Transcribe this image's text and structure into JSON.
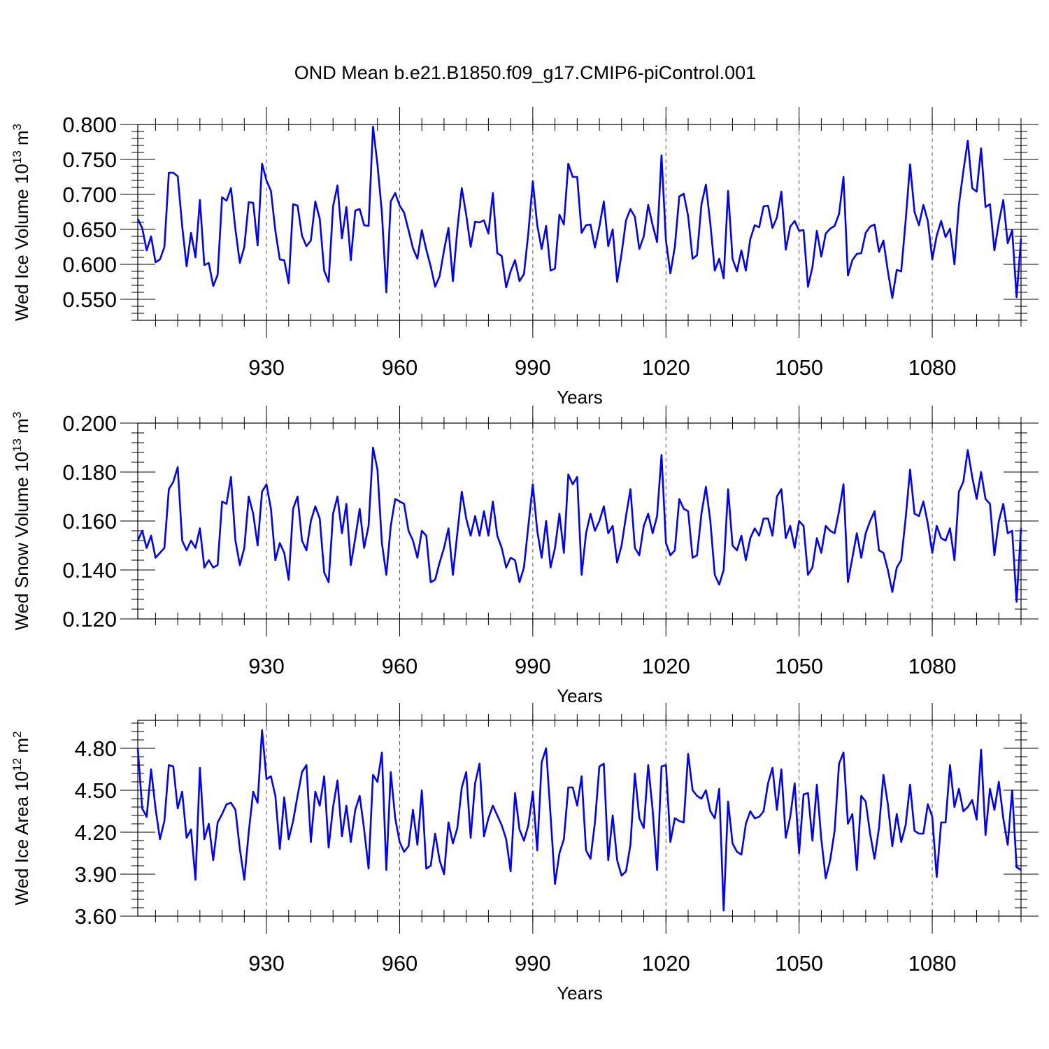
{
  "title": "OND Mean b.e21.B1850.f09_g17.CMIP6-piControl.001",
  "colors": {
    "series": "#0000ff",
    "axis": "#000000",
    "grid": "#555555"
  },
  "chart_data": [
    {
      "type": "line",
      "xlabel": "Years",
      "ylabel_main": "Wed Ice Volume 10",
      "ylabel_sup": "13",
      "ylabel_unit": " m",
      "ylabel_unit_sup": "3",
      "x_start": 901,
      "xlim": [
        901,
        1100
      ],
      "ylim": [
        0.52,
        0.8
      ],
      "yticks": [
        0.55,
        0.6,
        0.65,
        0.7,
        0.75,
        0.8
      ],
      "ytick_labels": [
        "0.550",
        "0.600",
        "0.650",
        "0.700",
        "0.750",
        "0.800"
      ],
      "yminor_step": 0.01,
      "xticks": [
        930,
        960,
        990,
        1020,
        1050,
        1080
      ],
      "xtick_labels": [
        "930",
        "960",
        "990",
        "1020",
        "1050",
        "1080"
      ],
      "grid": "dashed vertical at major x ticks",
      "values": [
        0.665,
        0.652,
        0.62,
        0.64,
        0.603,
        0.607,
        0.625,
        0.731,
        0.731,
        0.726,
        0.655,
        0.597,
        0.645,
        0.61,
        0.692,
        0.599,
        0.602,
        0.569,
        0.585,
        0.696,
        0.691,
        0.709,
        0.65,
        0.602,
        0.625,
        0.689,
        0.688,
        0.627,
        0.744,
        0.72,
        0.705,
        0.648,
        0.607,
        0.606,
        0.573,
        0.686,
        0.684,
        0.641,
        0.626,
        0.634,
        0.69,
        0.665,
        0.591,
        0.575,
        0.683,
        0.713,
        0.637,
        0.682,
        0.606,
        0.677,
        0.679,
        0.656,
        0.655,
        0.797,
        0.743,
        0.674,
        0.56,
        0.69,
        0.702,
        0.684,
        0.674,
        0.649,
        0.623,
        0.608,
        0.649,
        0.621,
        0.597,
        0.568,
        0.583,
        0.62,
        0.652,
        0.576,
        0.65,
        0.709,
        0.671,
        0.625,
        0.661,
        0.66,
        0.663,
        0.644,
        0.702,
        0.616,
        0.612,
        0.567,
        0.59,
        0.606,
        0.576,
        0.586,
        0.645,
        0.719,
        0.656,
        0.622,
        0.655,
        0.591,
        0.594,
        0.671,
        0.657,
        0.744,
        0.725,
        0.725,
        0.645,
        0.656,
        0.657,
        0.624,
        0.654,
        0.69,
        0.626,
        0.65,
        0.575,
        0.615,
        0.663,
        0.679,
        0.668,
        0.622,
        0.64,
        0.685,
        0.656,
        0.632,
        0.756,
        0.634,
        0.587,
        0.625,
        0.697,
        0.701,
        0.669,
        0.608,
        0.613,
        0.686,
        0.714,
        0.658,
        0.591,
        0.608,
        0.58,
        0.705,
        0.608,
        0.59,
        0.62,
        0.591,
        0.636,
        0.656,
        0.653,
        0.683,
        0.684,
        0.652,
        0.667,
        0.704,
        0.621,
        0.654,
        0.662,
        0.648,
        0.649,
        0.568,
        0.596,
        0.648,
        0.611,
        0.644,
        0.651,
        0.655,
        0.672,
        0.725,
        0.584,
        0.606,
        0.615,
        0.616,
        0.645,
        0.654,
        0.657,
        0.618,
        0.634,
        0.59,
        0.552,
        0.592,
        0.59,
        0.662,
        0.743,
        0.675,
        0.656,
        0.685,
        0.662,
        0.607,
        0.641,
        0.662,
        0.639,
        0.651,
        0.6,
        0.685,
        0.733,
        0.777,
        0.709,
        0.704,
        0.766,
        0.682,
        0.686,
        0.62,
        0.66,
        0.692,
        0.63,
        0.649,
        0.553,
        0.637
      ]
    },
    {
      "type": "line",
      "xlabel": "Years",
      "ylabel_main": "Wed Snow Volume 10",
      "ylabel_sup": "13",
      "ylabel_unit": " m",
      "ylabel_unit_sup": "3",
      "x_start": 901,
      "xlim": [
        901,
        1100
      ],
      "ylim": [
        0.12,
        0.2
      ],
      "yticks": [
        0.12,
        0.14,
        0.16,
        0.18,
        0.2
      ],
      "ytick_labels": [
        "0.120",
        "0.140",
        "0.160",
        "0.180",
        "0.200"
      ],
      "yminor_step": 0.004,
      "xticks": [
        930,
        960,
        990,
        1020,
        1050,
        1080
      ],
      "xtick_labels": [
        "930",
        "960",
        "990",
        "1020",
        "1050",
        "1080"
      ],
      "grid": "dashed vertical at major x ticks",
      "values": [
        0.152,
        0.156,
        0.149,
        0.154,
        0.145,
        0.147,
        0.149,
        0.173,
        0.176,
        0.182,
        0.152,
        0.148,
        0.152,
        0.149,
        0.157,
        0.141,
        0.144,
        0.141,
        0.142,
        0.168,
        0.167,
        0.178,
        0.152,
        0.142,
        0.149,
        0.17,
        0.163,
        0.15,
        0.172,
        0.175,
        0.165,
        0.144,
        0.151,
        0.147,
        0.136,
        0.165,
        0.17,
        0.152,
        0.148,
        0.16,
        0.166,
        0.161,
        0.139,
        0.135,
        0.163,
        0.17,
        0.155,
        0.167,
        0.142,
        0.153,
        0.165,
        0.149,
        0.158,
        0.19,
        0.181,
        0.151,
        0.138,
        0.158,
        0.169,
        0.168,
        0.167,
        0.156,
        0.152,
        0.145,
        0.156,
        0.154,
        0.135,
        0.136,
        0.143,
        0.149,
        0.157,
        0.138,
        0.155,
        0.172,
        0.161,
        0.154,
        0.162,
        0.154,
        0.164,
        0.154,
        0.168,
        0.154,
        0.149,
        0.141,
        0.145,
        0.144,
        0.135,
        0.141,
        0.158,
        0.175,
        0.156,
        0.145,
        0.16,
        0.141,
        0.149,
        0.163,
        0.147,
        0.179,
        0.175,
        0.178,
        0.138,
        0.155,
        0.163,
        0.156,
        0.16,
        0.166,
        0.155,
        0.158,
        0.143,
        0.15,
        0.162,
        0.173,
        0.149,
        0.146,
        0.158,
        0.163,
        0.155,
        0.162,
        0.187,
        0.151,
        0.146,
        0.148,
        0.169,
        0.165,
        0.164,
        0.145,
        0.146,
        0.163,
        0.174,
        0.16,
        0.138,
        0.134,
        0.14,
        0.173,
        0.15,
        0.148,
        0.154,
        0.144,
        0.153,
        0.157,
        0.154,
        0.161,
        0.161,
        0.154,
        0.17,
        0.173,
        0.153,
        0.158,
        0.149,
        0.16,
        0.158,
        0.138,
        0.141,
        0.153,
        0.147,
        0.158,
        0.156,
        0.155,
        0.164,
        0.175,
        0.135,
        0.145,
        0.155,
        0.145,
        0.155,
        0.16,
        0.164,
        0.148,
        0.147,
        0.14,
        0.131,
        0.141,
        0.144,
        0.161,
        0.181,
        0.163,
        0.162,
        0.168,
        0.159,
        0.147,
        0.158,
        0.153,
        0.152,
        0.157,
        0.144,
        0.172,
        0.176,
        0.189,
        0.178,
        0.169,
        0.18,
        0.169,
        0.167,
        0.146,
        0.16,
        0.167,
        0.155,
        0.156,
        0.127,
        0.157
      ]
    },
    {
      "type": "line",
      "xlabel": "Years",
      "ylabel_main": "Wed Ice Area 10",
      "ylabel_sup": "12",
      "ylabel_unit": " m",
      "ylabel_unit_sup": "2",
      "x_start": 901,
      "xlim": [
        901,
        1100
      ],
      "ylim": [
        3.6,
        5.0
      ],
      "yticks": [
        3.6,
        3.9,
        4.2,
        4.5,
        4.8
      ],
      "ytick_labels": [
        "3.60",
        "3.90",
        "4.20",
        "4.50",
        "4.80"
      ],
      "yminor_step": 0.06,
      "xticks": [
        930,
        960,
        990,
        1020,
        1050,
        1080
      ],
      "xtick_labels": [
        "930",
        "960",
        "990",
        "1020",
        "1050",
        "1080"
      ],
      "grid": "dashed vertical at major x ticks",
      "values": [
        4.8,
        4.37,
        4.31,
        4.65,
        4.37,
        4.15,
        4.28,
        4.68,
        4.67,
        4.37,
        4.49,
        4.16,
        4.22,
        3.86,
        4.66,
        4.15,
        4.26,
        4.0,
        4.27,
        4.33,
        4.4,
        4.41,
        4.36,
        4.08,
        3.86,
        4.2,
        4.49,
        4.41,
        4.93,
        4.58,
        4.6,
        4.46,
        4.08,
        4.45,
        4.15,
        4.28,
        4.46,
        4.63,
        4.68,
        4.13,
        4.49,
        4.39,
        4.6,
        4.09,
        4.38,
        4.57,
        4.17,
        4.39,
        4.13,
        4.36,
        4.46,
        4.22,
        3.94,
        4.61,
        4.56,
        4.77,
        3.93,
        4.63,
        4.3,
        4.13,
        4.06,
        4.1,
        4.36,
        4.11,
        4.5,
        3.94,
        3.96,
        4.19,
        4.0,
        3.9,
        4.27,
        4.12,
        4.23,
        4.52,
        4.63,
        4.16,
        4.55,
        4.69,
        4.17,
        4.3,
        4.39,
        4.32,
        4.25,
        4.15,
        3.92,
        4.48,
        4.22,
        4.14,
        4.25,
        4.49,
        4.07,
        4.7,
        4.8,
        4.32,
        3.83,
        4.05,
        4.15,
        4.52,
        4.52,
        4.39,
        4.6,
        4.07,
        4.01,
        4.27,
        4.67,
        4.69,
        4.0,
        4.32,
        4.0,
        3.89,
        3.92,
        4.11,
        4.62,
        4.3,
        4.23,
        4.68,
        4.36,
        3.93,
        4.67,
        4.68,
        4.13,
        4.3,
        4.28,
        4.27,
        4.76,
        4.5,
        4.46,
        4.44,
        4.5,
        4.35,
        4.3,
        4.51,
        3.64,
        4.42,
        4.12,
        4.06,
        4.04,
        4.26,
        4.35,
        4.3,
        4.31,
        4.35,
        4.55,
        4.66,
        4.36,
        4.65,
        4.16,
        4.31,
        4.55,
        4.05,
        4.47,
        4.48,
        4.14,
        4.54,
        4.15,
        3.87,
        4.0,
        4.21,
        4.69,
        4.77,
        4.26,
        4.33,
        3.93,
        4.46,
        4.42,
        4.19,
        4.01,
        4.23,
        4.61,
        4.4,
        4.1,
        4.33,
        4.13,
        4.25,
        4.54,
        4.21,
        4.19,
        4.19,
        4.4,
        4.31,
        3.88,
        4.27,
        4.27,
        4.68,
        4.38,
        4.51,
        4.35,
        4.38,
        4.43,
        4.29,
        4.79,
        4.18,
        4.51,
        4.36,
        4.56,
        4.3,
        4.11,
        4.5,
        3.95,
        3.93
      ]
    }
  ]
}
